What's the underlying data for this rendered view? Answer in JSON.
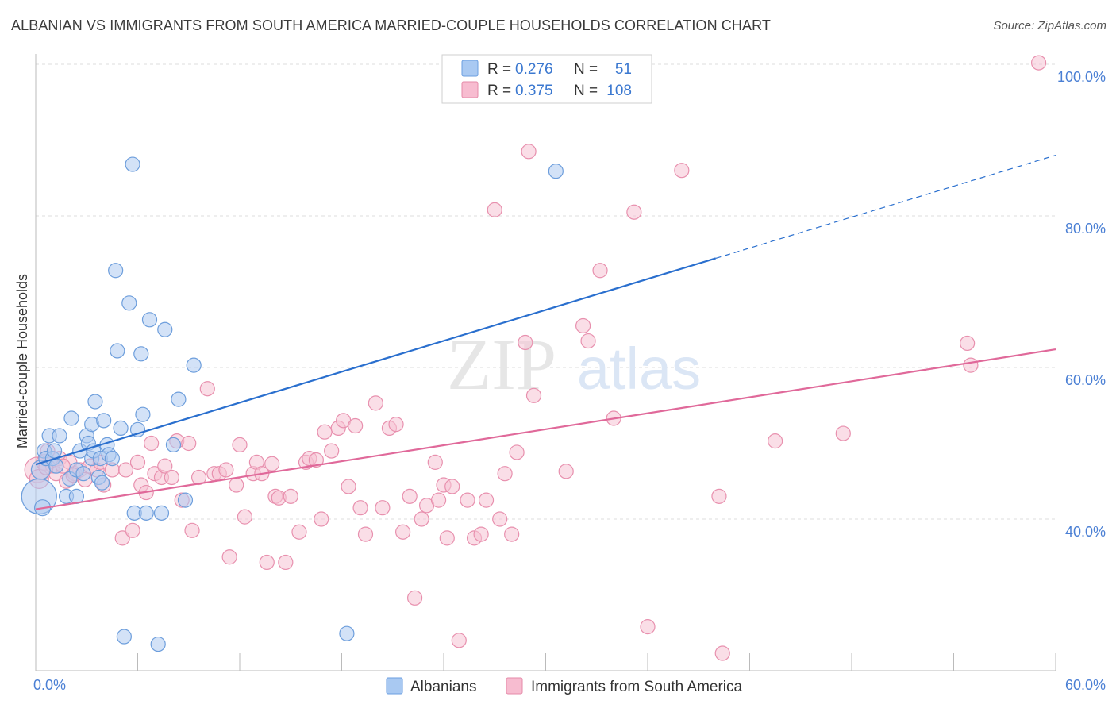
{
  "title": "ALBANIAN VS IMMIGRANTS FROM SOUTH AMERICA MARRIED-COUPLE HOUSEHOLDS CORRELATION CHART",
  "source": "Source: ZipAtlas.com",
  "watermark": {
    "zip": "ZIP",
    "atlas": "atlas"
  },
  "legend_stats": [
    {
      "r_label": "R =",
      "r_value": "0.276",
      "n_label": "N =",
      "n_value": "51",
      "color": "#a9c9f2",
      "stroke": "#6a9ee0"
    },
    {
      "r_label": "R =",
      "r_value": "0.375",
      "n_label": "N =",
      "n_value": "108",
      "color": "#f7bcd0",
      "stroke": "#e58aa8"
    }
  ],
  "colors": {
    "blue_fill": "#aecbf0",
    "blue_stroke": "#6d9edc",
    "blue_line": "#2a6fce",
    "pink_fill": "#f6c2d3",
    "pink_stroke": "#e890ae",
    "pink_line": "#e0699a",
    "grid": "#dddddd",
    "tick_text": "#4a7fd4"
  },
  "chart_data": {
    "type": "scatter",
    "xlabel": "",
    "ylabel": "Married-couple Households",
    "xlim": [
      0,
      60
    ],
    "ylim": [
      20,
      102
    ],
    "x_tick_labels": [
      "0.0%",
      "60.0%"
    ],
    "y_ticks": [
      {
        "value": 100,
        "label": "100.0%"
      },
      {
        "value": 80,
        "label": "80.0%"
      },
      {
        "value": 60,
        "label": "60.0%"
      },
      {
        "value": 40,
        "label": "40.0%"
      }
    ],
    "grid": true,
    "legend_position": "bottom",
    "series": [
      {
        "name": "Albanians",
        "trend": {
          "x0": 0,
          "y0": 47.2,
          "x1": 40,
          "y1": 74.4,
          "x_dash_end": 60,
          "y_dash_end": 88.0
        },
        "points": [
          [
            0.2,
            43.0,
            22
          ],
          [
            0.3,
            46.5,
            12
          ],
          [
            0.4,
            41.5,
            10
          ],
          [
            0.5,
            49.0,
            9
          ],
          [
            0.6,
            48.0,
            9
          ],
          [
            0.8,
            51.0,
            9
          ],
          [
            1.0,
            48.0,
            9
          ],
          [
            1.1,
            49.0,
            9
          ],
          [
            1.2,
            47.0,
            9
          ],
          [
            1.4,
            51.0,
            9
          ],
          [
            1.8,
            43.0,
            9
          ],
          [
            2.0,
            45.3,
            9
          ],
          [
            2.1,
            53.3,
            9
          ],
          [
            2.4,
            46.5,
            9
          ],
          [
            2.4,
            43.0,
            9
          ],
          [
            2.6,
            49.0,
            9
          ],
          [
            2.8,
            46.0,
            9
          ],
          [
            3.0,
            51.0,
            9
          ],
          [
            3.1,
            50.0,
            9
          ],
          [
            3.3,
            48.0,
            9
          ],
          [
            3.3,
            52.5,
            9
          ],
          [
            3.4,
            49.0,
            9
          ],
          [
            3.5,
            55.5,
            9
          ],
          [
            3.7,
            45.5,
            9
          ],
          [
            3.8,
            48.0,
            9
          ],
          [
            3.9,
            44.8,
            9
          ],
          [
            4.0,
            53.0,
            9
          ],
          [
            4.2,
            49.8,
            9
          ],
          [
            4.3,
            48.5,
            9
          ],
          [
            4.5,
            48.0,
            9
          ],
          [
            4.7,
            72.8,
            9
          ],
          [
            4.8,
            62.2,
            9
          ],
          [
            5.0,
            52.0,
            9
          ],
          [
            5.2,
            24.5,
            9
          ],
          [
            5.5,
            68.5,
            9
          ],
          [
            5.7,
            86.8,
            9
          ],
          [
            5.8,
            40.8,
            9
          ],
          [
            6.0,
            51.8,
            9
          ],
          [
            6.2,
            61.8,
            9
          ],
          [
            6.3,
            53.8,
            9
          ],
          [
            6.5,
            40.8,
            9
          ],
          [
            6.7,
            66.3,
            9
          ],
          [
            7.2,
            23.5,
            9
          ],
          [
            7.4,
            40.8,
            9
          ],
          [
            7.6,
            65.0,
            9
          ],
          [
            8.1,
            49.8,
            9
          ],
          [
            8.4,
            55.8,
            9
          ],
          [
            8.8,
            42.5,
            9
          ],
          [
            9.3,
            60.3,
            9
          ],
          [
            18.3,
            24.9,
            9
          ],
          [
            30.6,
            85.9,
            9
          ]
        ]
      },
      {
        "name": "Immigrants from South America",
        "trend": {
          "x0": 0,
          "y0": 41.3,
          "x1": 60,
          "y1": 62.4
        },
        "points": [
          [
            0.1,
            46.5,
            16
          ],
          [
            0.2,
            45.3,
            12
          ],
          [
            0.5,
            47.5,
            10
          ],
          [
            0.7,
            49.0,
            9
          ],
          [
            1.0,
            47.0,
            9
          ],
          [
            1.2,
            46.0,
            9
          ],
          [
            1.4,
            48.0,
            9
          ],
          [
            1.8,
            45.0,
            9
          ],
          [
            2.0,
            47.5,
            9
          ],
          [
            2.3,
            46.0,
            9
          ],
          [
            2.6,
            46.5,
            9
          ],
          [
            2.9,
            45.2,
            9
          ],
          [
            3.2,
            47.0,
            9
          ],
          [
            3.6,
            46.5,
            9
          ],
          [
            3.8,
            47.5,
            9
          ],
          [
            4.0,
            44.5,
            9
          ],
          [
            4.5,
            46.5,
            9
          ],
          [
            5.1,
            37.5,
            9
          ],
          [
            5.3,
            46.5,
            9
          ],
          [
            5.7,
            38.5,
            9
          ],
          [
            6.0,
            47.5,
            9
          ],
          [
            6.2,
            44.5,
            9
          ],
          [
            6.5,
            43.5,
            9
          ],
          [
            6.8,
            50.0,
            9
          ],
          [
            7.0,
            46.0,
            9
          ],
          [
            7.4,
            45.5,
            9
          ],
          [
            7.6,
            47.0,
            9
          ],
          [
            8.0,
            45.5,
            9
          ],
          [
            8.3,
            50.3,
            9
          ],
          [
            8.6,
            42.5,
            9
          ],
          [
            9.0,
            50.0,
            9
          ],
          [
            9.2,
            38.5,
            9
          ],
          [
            9.6,
            45.5,
            9
          ],
          [
            10.1,
            57.2,
            9
          ],
          [
            10.5,
            46.0,
            9
          ],
          [
            10.8,
            46.0,
            9
          ],
          [
            11.2,
            46.5,
            9
          ],
          [
            11.4,
            35.0,
            9
          ],
          [
            11.8,
            44.5,
            9
          ],
          [
            12.0,
            49.8,
            9
          ],
          [
            12.3,
            40.3,
            9
          ],
          [
            12.8,
            46.0,
            9
          ],
          [
            13.0,
            47.5,
            9
          ],
          [
            13.3,
            46.0,
            9
          ],
          [
            13.6,
            34.3,
            9
          ],
          [
            13.9,
            47.3,
            9
          ],
          [
            14.1,
            43.0,
            9
          ],
          [
            14.3,
            42.8,
            9
          ],
          [
            14.7,
            34.3,
            9
          ],
          [
            15.0,
            43.0,
            9
          ],
          [
            15.5,
            38.3,
            9
          ],
          [
            15.9,
            47.5,
            9
          ],
          [
            16.1,
            48.0,
            9
          ],
          [
            16.5,
            47.8,
            9
          ],
          [
            16.8,
            40.0,
            9
          ],
          [
            17.0,
            51.5,
            9
          ],
          [
            17.4,
            49.0,
            9
          ],
          [
            17.8,
            52.0,
            9
          ],
          [
            18.1,
            53.0,
            9
          ],
          [
            18.4,
            44.3,
            9
          ],
          [
            18.8,
            52.3,
            9
          ],
          [
            19.1,
            41.5,
            9
          ],
          [
            19.4,
            38.0,
            9
          ],
          [
            20.0,
            55.3,
            9
          ],
          [
            20.4,
            41.5,
            9
          ],
          [
            20.8,
            52.0,
            9
          ],
          [
            21.2,
            52.5,
            9
          ],
          [
            21.6,
            38.3,
            9
          ],
          [
            22.0,
            43.0,
            9
          ],
          [
            22.3,
            29.6,
            9
          ],
          [
            22.7,
            40.0,
            9
          ],
          [
            23.0,
            41.8,
            9
          ],
          [
            23.5,
            47.5,
            9
          ],
          [
            23.7,
            42.5,
            9
          ],
          [
            24.0,
            44.5,
            9
          ],
          [
            24.2,
            37.5,
            9
          ],
          [
            24.5,
            44.3,
            9
          ],
          [
            24.9,
            24.0,
            9
          ],
          [
            25.4,
            42.5,
            9
          ],
          [
            25.8,
            37.5,
            9
          ],
          [
            26.2,
            38.0,
            9
          ],
          [
            26.5,
            42.5,
            9
          ],
          [
            27.0,
            80.8,
            9
          ],
          [
            27.3,
            40.0,
            9
          ],
          [
            27.6,
            46.0,
            9
          ],
          [
            28.0,
            38.0,
            9
          ],
          [
            28.3,
            48.8,
            9
          ],
          [
            28.8,
            63.3,
            9
          ],
          [
            29.0,
            88.5,
            9
          ],
          [
            29.3,
            56.3,
            9
          ],
          [
            31.2,
            46.3,
            9
          ],
          [
            32.2,
            65.5,
            9
          ],
          [
            32.5,
            63.5,
            9
          ],
          [
            33.2,
            72.8,
            9
          ],
          [
            34.0,
            53.3,
            9
          ],
          [
            35.2,
            80.5,
            9
          ],
          [
            36.0,
            25.8,
            9
          ],
          [
            38.0,
            86.0,
            9
          ],
          [
            40.2,
            43.0,
            9
          ],
          [
            40.4,
            22.3,
            9
          ],
          [
            43.5,
            50.3,
            9
          ],
          [
            47.5,
            51.3,
            9
          ],
          [
            54.8,
            63.2,
            9
          ],
          [
            55.0,
            60.3,
            9
          ],
          [
            59.0,
            100.2,
            9
          ],
          [
            0.6,
            46.8,
            9
          ],
          [
            1.6,
            47.0,
            9
          ],
          [
            2.2,
            45.8,
            9
          ]
        ]
      }
    ]
  }
}
